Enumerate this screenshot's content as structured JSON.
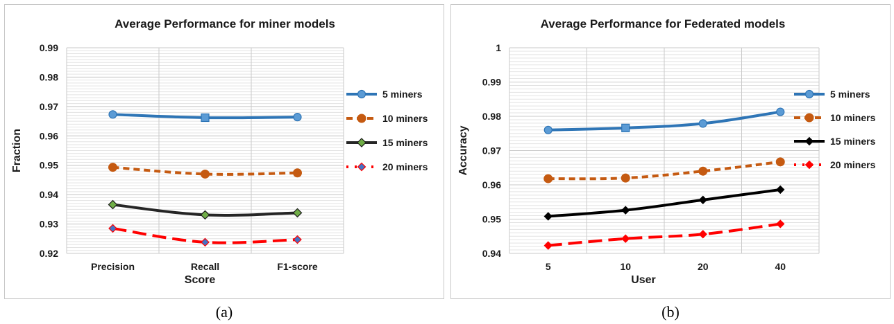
{
  "chart_data": [
    {
      "type": "line",
      "title": "Average Performance for miner models",
      "xlabel": "Score",
      "ylabel": "Fraction",
      "categories": [
        "Precision",
        "Recall",
        "F1-score"
      ],
      "ylim": [
        0.92,
        0.99
      ],
      "yticks": [
        "0.92",
        "0.93",
        "0.94",
        "0.95",
        "0.96",
        "0.97",
        "0.98",
        "0.99"
      ],
      "grid": true,
      "legend": "right",
      "series": [
        {
          "name": "5 miners",
          "values": [
            0.9673,
            0.9662,
            0.9664
          ],
          "color": "#2e75b6",
          "dash": "solid",
          "marker": "circle-square"
        },
        {
          "name": "10 miners",
          "values": [
            0.9493,
            0.947,
            0.9474
          ],
          "color": "#c55a11",
          "dash": "dash",
          "marker": "circle"
        },
        {
          "name": "15 miners",
          "values": [
            0.9366,
            0.9331,
            0.9338
          ],
          "color": "#262626",
          "dash": "solid",
          "marker": "diamond-green"
        },
        {
          "name": "20 miners",
          "values": [
            0.9285,
            0.9238,
            0.9247
          ],
          "color": "#ff0000",
          "dash": "longdash",
          "marker": "diamond-blue"
        }
      ]
    },
    {
      "type": "line",
      "title": "Average Performance for Federated models",
      "xlabel": "User",
      "ylabel": "Accuracy",
      "categories": [
        "5",
        "10",
        "20",
        "40"
      ],
      "ylim": [
        0.94,
        1.0
      ],
      "yticks": [
        "0.94",
        "0.95",
        "0.96",
        "0.97",
        "0.98",
        "0.99",
        "1"
      ],
      "grid": true,
      "legend": "right",
      "series": [
        {
          "name": "5 miners",
          "values": [
            0.976,
            0.9766,
            0.9779,
            0.9813
          ],
          "color": "#2e75b6",
          "dash": "solid",
          "marker": "circle-square"
        },
        {
          "name": "10 miners",
          "values": [
            0.9618,
            0.962,
            0.964,
            0.9667
          ],
          "color": "#c55a11",
          "dash": "dash",
          "marker": "circle"
        },
        {
          "name": "15 miners",
          "values": [
            0.9508,
            0.9526,
            0.9556,
            0.9586
          ],
          "color": "#000000",
          "dash": "solid",
          "marker": "diamond"
        },
        {
          "name": "20 miners",
          "values": [
            0.9423,
            0.9443,
            0.9456,
            0.9486
          ],
          "color": "#ff0000",
          "dash": "longdash",
          "marker": "diamond"
        }
      ]
    }
  ],
  "captions": [
    "(a)",
    "(b)"
  ]
}
